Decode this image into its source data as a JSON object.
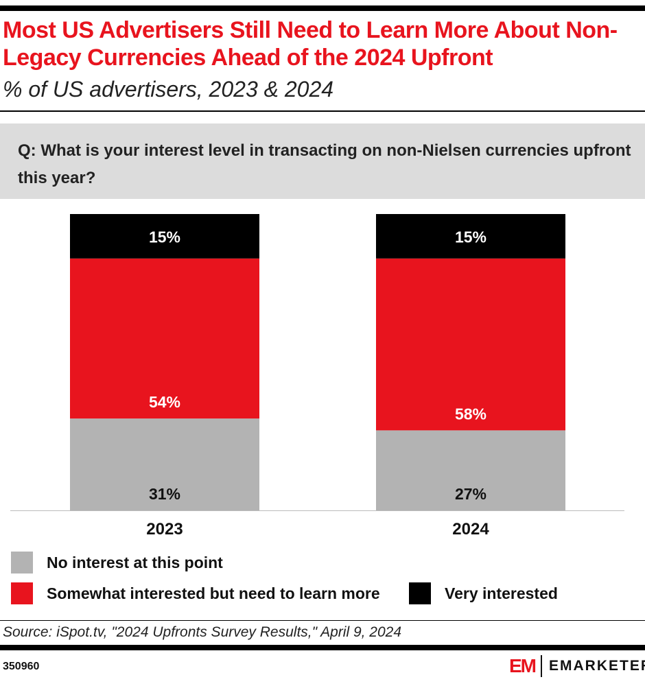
{
  "header": {
    "title": "Most US Advertisers Still Need to Learn More About Non-Legacy Currencies Ahead of the 2024 Upfront",
    "subtitle": "% of US advertisers, 2023 & 2024"
  },
  "question": "Q: What is your interest level in transacting on non-Nielsen currencies upfront this year?",
  "chart_data": {
    "type": "bar",
    "stacked": true,
    "categories": [
      "2023",
      "2024"
    ],
    "series": [
      {
        "name": "No interest at this point",
        "color": "#b3b3b3",
        "values": [
          31,
          27
        ],
        "labels": [
          "31%",
          "27%"
        ]
      },
      {
        "name": "Somewhat interested but need to learn more",
        "color": "#e8141e",
        "values": [
          54,
          58
        ],
        "labels": [
          "54%",
          "58%"
        ]
      },
      {
        "name": "Very interested",
        "color": "#000000",
        "values": [
          15,
          15
        ],
        "labels": [
          "15%",
          "15%"
        ]
      }
    ],
    "ylim": [
      0,
      100
    ],
    "grid": false,
    "legend_position": "bottom"
  },
  "footer": {
    "source": "Source: iSpot.tv, \"2024 Upfronts Survey Results,\" April 9, 2024",
    "chart_id": "350960",
    "logo_mark": "EM",
    "logo_text": "EMARKETER"
  }
}
